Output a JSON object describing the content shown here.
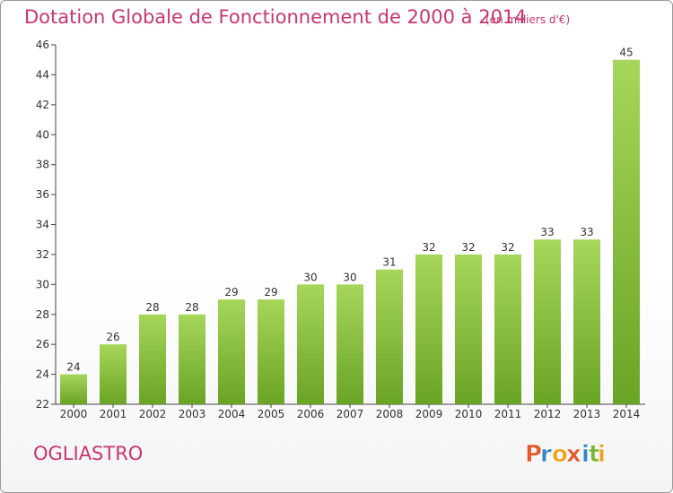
{
  "header": {
    "title": "Dotation Globale de Fonctionnement de 2000 à 2014",
    "subtitle": "(en milliers d'€)"
  },
  "footer": {
    "commune": "OGLIASTRO",
    "brand": "Proxiti"
  },
  "colors": {
    "title": "#c9366f",
    "bar_light": "#a6d65a",
    "bar_dark": "#6aa425",
    "brand_letters": [
      "#e8572a",
      "#2f86c9",
      "#f0a21f",
      "#e8572a",
      "#2f86c9",
      "#7cb82f",
      "#f0a21f"
    ]
  },
  "chart_data": {
    "type": "bar",
    "categories": [
      "2000",
      "2001",
      "2002",
      "2003",
      "2004",
      "2005",
      "2006",
      "2007",
      "2008",
      "2009",
      "2010",
      "2011",
      "2012",
      "2013",
      "2014"
    ],
    "values": [
      24,
      26,
      28,
      28,
      29,
      29,
      30,
      30,
      31,
      32,
      32,
      32,
      33,
      33,
      45
    ],
    "ylim": [
      22,
      46
    ],
    "yticks": [
      22,
      24,
      26,
      28,
      30,
      32,
      34,
      36,
      38,
      40,
      42,
      44,
      46
    ],
    "grid": false
  }
}
